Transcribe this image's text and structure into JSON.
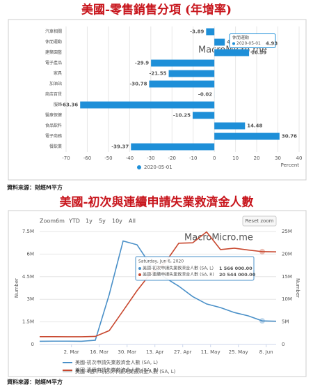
{
  "chart_data": [
    {
      "type": "bar",
      "orientation": "horizontal",
      "title": "美國-零售銷售分項 (年增率)",
      "categories": [
        "汽車相關",
        "休閒運動",
        "建築園藝",
        "電子產品",
        "家具",
        "加油站",
        "商店百貨",
        "服飾",
        "醫療保健",
        "食品飲料",
        "電子商務",
        "餐飲業"
      ],
      "series": [
        {
          "name": "2020-05-01",
          "color": "#1e8fd8",
          "values": [
            -3.89,
            4.93,
            16.39,
            -29.9,
            -21.55,
            -30.78,
            -0.02,
            -63.36,
            -10.25,
            14.48,
            30.76,
            -39.37
          ]
        }
      ],
      "xlim": [
        -70,
        40
      ],
      "xticks": [
        -70,
        -60,
        -50,
        -40,
        -30,
        -20,
        -10,
        0,
        10,
        20,
        30,
        40
      ],
      "xlabel": "Percent",
      "grid": true,
      "watermark": "MacroMicro.me",
      "tooltip_index": 1,
      "source": "資料來源：財經M平方"
    },
    {
      "type": "line",
      "title": "美國-初次與連續申請失業救濟金人數",
      "x": [
        "2020-02-15",
        "2020-02-22",
        "2020-02-29",
        "2020-03-07",
        "2020-03-14",
        "2020-03-21",
        "2020-03-28",
        "2020-04-04",
        "2020-04-11",
        "2020-04-18",
        "2020-04-25",
        "2020-05-02",
        "2020-05-09",
        "2020-05-16",
        "2020-05-23",
        "2020-05-30",
        "2020-06-06",
        "2020-06-13"
      ],
      "series": [
        {
          "name": "美國-初次申請失業救濟金人數 (SA, L)",
          "color": "#4a90c8",
          "values": [
            210000,
            220000,
            220000,
            210000,
            280000,
            3310000,
            6870000,
            6620000,
            5240000,
            4440000,
            3870000,
            3180000,
            2690000,
            2450000,
            2120000,
            1900000,
            1566000,
            1540000
          ]
        },
        {
          "name": "美國-連續申請失業救濟金人數 (SA, R)",
          "color": "#c8472e",
          "axis": "y2",
          "values": [
            1720000,
            1730000,
            1700000,
            1700000,
            1780000,
            3060000,
            7450000,
            11900000,
            15800000,
            18000000,
            22400000,
            22500000,
            24900000,
            21000000,
            21300000,
            20900000,
            20544000,
            20500000
          ]
        }
      ],
      "inactive_legend": "美國-4週平均初次申請失業救濟金人數 (SA, L)",
      "xlim": [
        "2020-02-15",
        "2020-06-13"
      ],
      "xticks": [
        {
          "value": "2020-03-02",
          "label": "2. Mar"
        },
        {
          "value": "2020-03-16",
          "label": "16. Mar"
        },
        {
          "value": "2020-03-30",
          "label": "30. Mar"
        },
        {
          "value": "2020-04-13",
          "label": "13. Apr"
        },
        {
          "value": "2020-04-27",
          "label": "27. Apr"
        },
        {
          "value": "2020-05-11",
          "label": "11. May"
        },
        {
          "value": "2020-05-25",
          "label": "25. May"
        },
        {
          "value": "2020-06-08",
          "label": "8. Jun"
        }
      ],
      "ylim": [
        0,
        7500000
      ],
      "yticks": [
        0,
        {
          "value": 1500000,
          "label": "1.5M"
        },
        {
          "value": 3000000,
          "label": "3M"
        },
        {
          "value": 4500000,
          "label": "4.5M"
        },
        {
          "value": 6000000,
          "label": "6M"
        },
        {
          "value": 7500000,
          "label": "7.5M"
        }
      ],
      "y2lim": [
        0,
        25000000
      ],
      "y2ticks": [
        0,
        {
          "value": 5000000,
          "label": "5M"
        },
        {
          "value": 10000000,
          "label": "10M"
        },
        {
          "value": 15000000,
          "label": "15M"
        },
        {
          "value": 20000000,
          "label": "20M"
        },
        {
          "value": 25000000,
          "label": "25M"
        }
      ],
      "ylabel": "Number",
      "y2label": "Number",
      "grid": true,
      "zoom_label": "Zoom",
      "range_buttons": [
        "6m",
        "YTD",
        "1y",
        "5y",
        "10y",
        "All"
      ],
      "reset_label": "Reset zoom",
      "watermark": "MacroMicro.me",
      "tooltip": {
        "index": 16,
        "title": "Saturday, Jun 6, 2020",
        "value_labels": [
          "1 566 000.00",
          "20 544 000.00"
        ]
      },
      "source": "資料來源：財經M平方"
    }
  ]
}
